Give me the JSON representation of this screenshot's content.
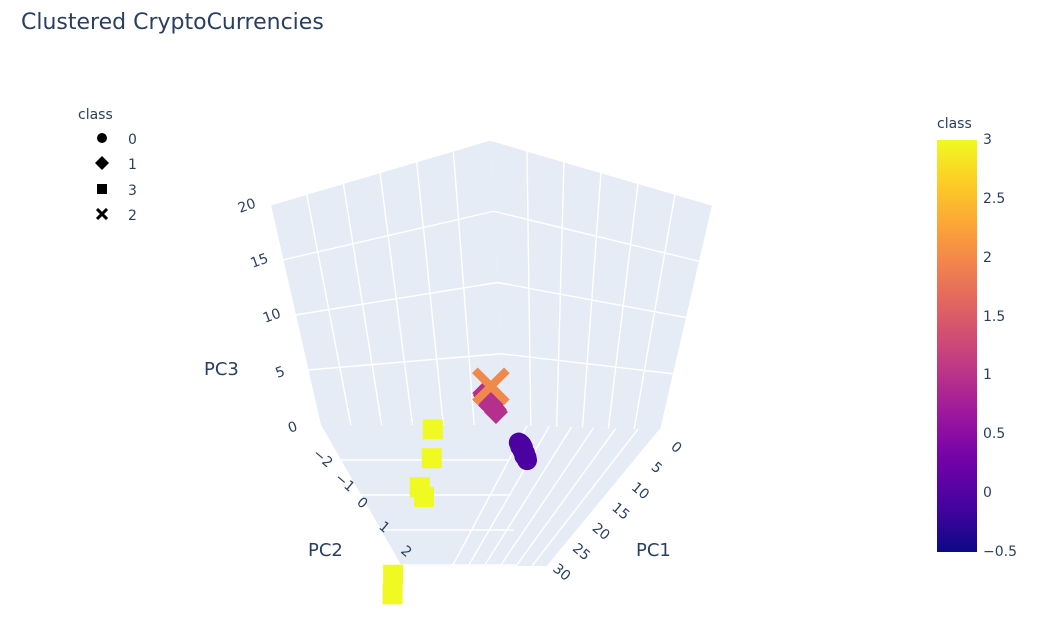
{
  "title": "Clustered CryptoCurrencies",
  "legend": {
    "title": "class",
    "items": [
      {
        "label": "0",
        "symbol": "circle"
      },
      {
        "label": "1",
        "symbol": "diamond"
      },
      {
        "label": "3",
        "symbol": "square"
      },
      {
        "label": "2",
        "symbol": "x"
      }
    ]
  },
  "colorbar": {
    "title": "class",
    "ticks": [
      "3",
      "2.5",
      "2",
      "1.5",
      "1",
      "0.5",
      "0",
      "−0.5"
    ],
    "range": [
      -0.5,
      3
    ],
    "colors": [
      "#0d0887",
      "#46039f",
      "#7201a8",
      "#9c179e",
      "#bd3786",
      "#d8576b",
      "#ed7953",
      "#fb9f3a",
      "#fdca26",
      "#f0f921"
    ]
  },
  "chart_data": {
    "type": "scatter3d",
    "title": "Clustered CryptoCurrencies",
    "xlabel": "PC1",
    "ylabel": "PC2",
    "zlabel": "PC3",
    "x_ticks": [
      "0",
      "5",
      "10",
      "15",
      "20",
      "25",
      "30"
    ],
    "y_ticks": [
      "−2",
      "−1",
      "0",
      "1",
      "2"
    ],
    "z_ticks": [
      "0",
      "5",
      "10",
      "15",
      "20"
    ],
    "series": [
      {
        "name": "0",
        "symbol": "circle",
        "color": "#4c02a1",
        "points": [
          [
            -0.3,
            0.6,
            -0.5
          ],
          [
            -0.25,
            0.62,
            -0.45
          ],
          [
            -0.2,
            0.58,
            -0.52
          ],
          [
            -0.28,
            0.55,
            -0.48
          ],
          [
            -0.15,
            0.65,
            -0.4
          ],
          [
            -0.1,
            0.6,
            -0.55
          ],
          [
            -0.22,
            0.68,
            -0.5
          ],
          [
            -0.18,
            0.52,
            -0.42
          ],
          [
            -0.05,
            0.7,
            -0.6
          ],
          [
            -0.12,
            0.72,
            -0.58
          ],
          [
            0.0,
            0.75,
            -0.62
          ],
          [
            -0.08,
            0.8,
            -0.65
          ],
          [
            0.05,
            0.85,
            -0.7
          ],
          [
            0.1,
            0.9,
            -0.66
          ],
          [
            0.12,
            0.82,
            -0.72
          ],
          [
            0.2,
            0.95,
            -0.75
          ]
        ]
      },
      {
        "name": "1",
        "symbol": "diamond",
        "color": "#b5308c",
        "points": [
          [
            -0.4,
            -0.8,
            0.2
          ],
          [
            -0.35,
            -0.75,
            0.25
          ],
          [
            -0.3,
            -0.7,
            0.22
          ],
          [
            -0.28,
            -0.65,
            0.18
          ],
          [
            -0.25,
            -0.6,
            0.26
          ],
          [
            -0.2,
            -0.55,
            0.2
          ],
          [
            -0.32,
            -0.85,
            0.3
          ],
          [
            -0.38,
            -0.9,
            0.28
          ],
          [
            -0.45,
            -0.95,
            0.32
          ],
          [
            -0.22,
            -0.5,
            0.15
          ],
          [
            -0.18,
            -0.45,
            0.17
          ],
          [
            -0.15,
            -0.4,
            0.12
          ],
          [
            -0.27,
            -0.58,
            0.1
          ],
          [
            -0.3,
            -0.5,
            0.05
          ],
          [
            -0.2,
            -0.65,
            0.08
          ]
        ]
      },
      {
        "name": "3",
        "symbol": "square",
        "color": "#f0f921",
        "points": [
          [
            30.5,
            2.6,
            7.9
          ],
          [
            22.2,
            2.0,
            14.2
          ],
          [
            25.9,
            2.4,
            14.6
          ],
          [
            24.1,
            2.2,
            12.2
          ],
          [
            17.1,
            0.9,
            11.3
          ],
          [
            33.0,
            3.1,
            12.3
          ]
        ]
      },
      {
        "name": "2",
        "symbol": "x",
        "color": "#ef8a4c",
        "points": [
          [
            0.1,
            -0.6,
            2.1
          ]
        ]
      }
    ]
  }
}
